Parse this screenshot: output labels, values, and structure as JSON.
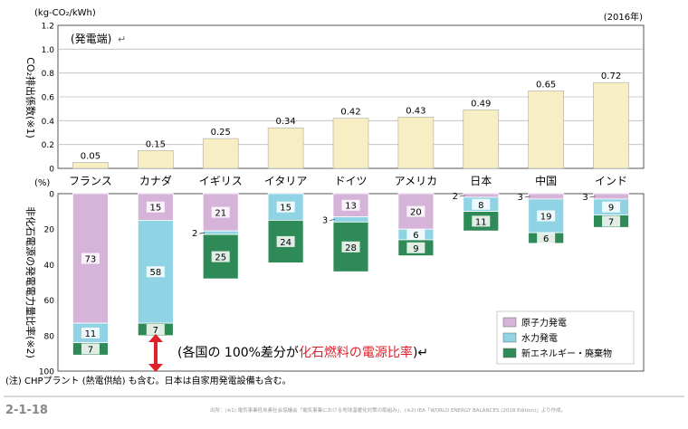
{
  "header": {
    "unit": "(kg-CO₂/kWh)",
    "year": "(2016年)",
    "panel_label": "(発電端)",
    "panel_mark": "↵"
  },
  "chart_data": [
    {
      "type": "bar",
      "ylabel": "CO₂排出係数(※1)",
      "ylim": [
        0,
        1.2
      ],
      "yticks": [
        "0",
        "0.2",
        "0.4",
        "0.6",
        "0.8",
        "1.0",
        "1.2"
      ],
      "categories": [
        "フランス",
        "カナダ",
        "イギリス",
        "イタリア",
        "ドイツ",
        "アメリカ",
        "日本",
        "中国",
        "インド"
      ],
      "values": [
        0.05,
        0.15,
        0.25,
        0.34,
        0.42,
        0.43,
        0.49,
        0.65,
        0.72
      ],
      "value_labels": [
        "0.05",
        "0.15",
        "0.25",
        "0.34",
        "0.42",
        "0.43",
        "0.49",
        "0.65",
        "0.72"
      ],
      "color": "#f7eec4"
    },
    {
      "type": "bar",
      "stacked": true,
      "ylabel": "非化石電源の発電電力量比率(※2)",
      "yunit": "(%)",
      "ylim": [
        0,
        100
      ],
      "inverted": true,
      "yticks": [
        "0",
        "20",
        "40",
        "60",
        "80",
        "100"
      ],
      "categories": [
        "フランス",
        "カナダ",
        "イギリス",
        "イタリア",
        "ドイツ",
        "アメリカ",
        "日本",
        "中国",
        "インド"
      ],
      "series": [
        {
          "name": "原子力発電",
          "color": "#d6b3d9",
          "values": [
            73,
            15,
            21,
            0,
            13,
            20,
            2,
            3,
            3
          ],
          "labels": [
            "73",
            "15",
            "21",
            "",
            "13",
            "20",
            "2",
            "3",
            "3"
          ]
        },
        {
          "name": "水力発電",
          "color": "#8fd3e4",
          "values": [
            11,
            58,
            2,
            15,
            3,
            6,
            8,
            19,
            9
          ],
          "labels": [
            "11",
            "58",
            "2",
            "15",
            "3",
            "6",
            "8",
            "19",
            "9"
          ]
        },
        {
          "name": "新エネルギー・廃棄物",
          "color": "#2e8b57",
          "values": [
            7,
            7,
            25,
            24,
            28,
            9,
            11,
            6,
            7
          ],
          "labels": [
            "7",
            "7",
            "25",
            "24",
            "28",
            "9",
            "11",
            "6",
            "7"
          ]
        }
      ],
      "legend_position": "bottom-right",
      "annotation": {
        "prefix": "(各国の 100%差分が",
        "highlight": "化石燃料の電源比率",
        "suffix": ")↵",
        "highlight_color": "#e0202b"
      }
    }
  ],
  "footer": {
    "note": "(注) CHPプラント (熱電供給) も含む。日本は自家用発電設備も含む。",
    "figure_number": "2-1-18",
    "source": "出所：(※1) 電気事業低炭素社会協議会「電気事業における地球温暖化対策の取組み」、(※2) IEA「WORLD ENERGY BALANCES (2018 Edition)」より作成。"
  }
}
